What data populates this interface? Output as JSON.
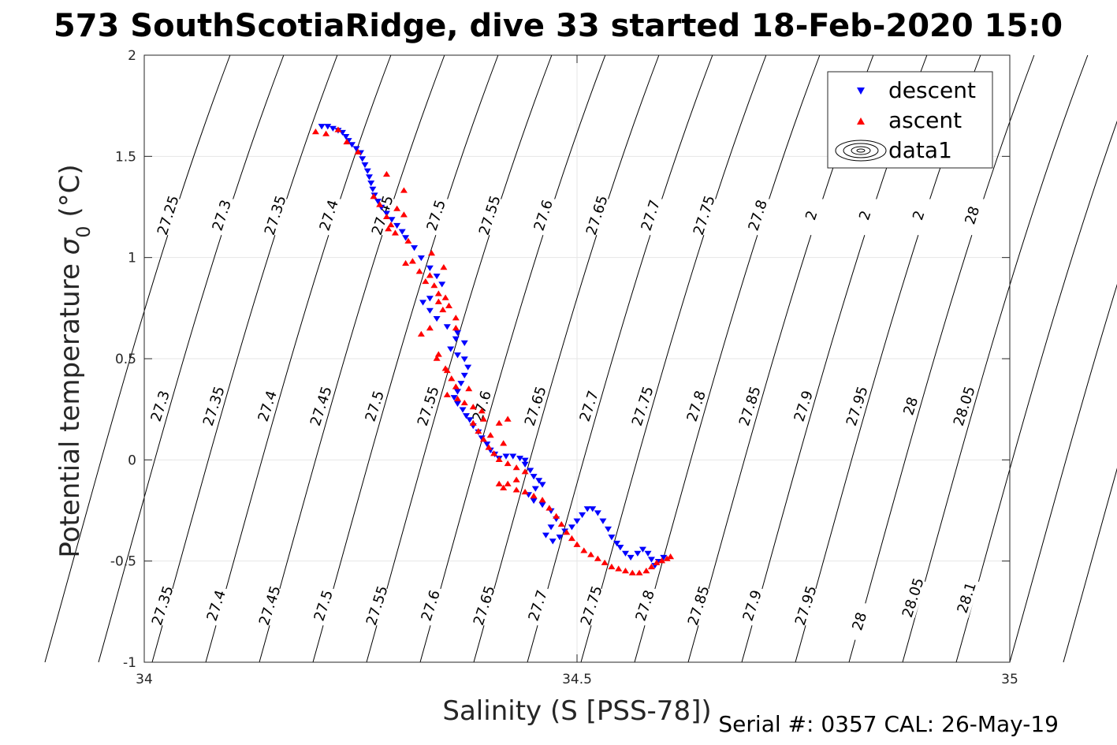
{
  "chart_data": {
    "type": "scatter",
    "title": "573 SouthScotiaRidge, dive 33 started 18-Feb-2020 15:0",
    "xlabel": "Salinity (S [PSS-78])",
    "ylabel_main": "Potential temperature ",
    "ylabel_sigma": "σ",
    "ylabel_sub": "0",
    "ylabel_unit": " (°C)",
    "xlim": [
      34,
      35
    ],
    "ylim": [
      -1,
      2
    ],
    "x_ticks": [
      "34",
      "34.5",
      "35"
    ],
    "y_ticks": [
      "-1",
      "-0.5",
      "0",
      "0.5",
      "1",
      "1.5",
      "2"
    ],
    "grid": true,
    "legend_position": "top-right",
    "legend": [
      {
        "label": "descent",
        "marker": "triangle-down",
        "color": "#0000ff"
      },
      {
        "label": "ascent",
        "marker": "triangle-up",
        "color": "#ff0000"
      },
      {
        "label": "data1",
        "marker": "contour",
        "color": "#000000"
      }
    ],
    "series": [
      {
        "name": "descent",
        "marker": "triangle-down",
        "color": "#0000ff",
        "points": [
          [
            34.205,
            1.65
          ],
          [
            34.212,
            1.65
          ],
          [
            34.218,
            1.64
          ],
          [
            34.224,
            1.63
          ],
          [
            34.229,
            1.62
          ],
          [
            34.233,
            1.6
          ],
          [
            34.236,
            1.58
          ],
          [
            34.24,
            1.56
          ],
          [
            34.245,
            1.54
          ],
          [
            34.25,
            1.52
          ],
          [
            34.252,
            1.49
          ],
          [
            34.255,
            1.46
          ],
          [
            34.258,
            1.43
          ],
          [
            34.26,
            1.4
          ],
          [
            34.262,
            1.37
          ],
          [
            34.264,
            1.34
          ],
          [
            34.266,
            1.31
          ],
          [
            34.27,
            1.28
          ],
          [
            34.274,
            1.25
          ],
          [
            34.28,
            1.22
          ],
          [
            34.286,
            1.19
          ],
          [
            34.292,
            1.16
          ],
          [
            34.298,
            1.13
          ],
          [
            34.302,
            1.1
          ],
          [
            34.312,
            1.05
          ],
          [
            34.32,
            1.0
          ],
          [
            34.33,
            0.95
          ],
          [
            34.338,
            0.91
          ],
          [
            34.344,
            0.87
          ],
          [
            34.33,
            0.8
          ],
          [
            34.322,
            0.78
          ],
          [
            34.33,
            0.74
          ],
          [
            34.338,
            0.7
          ],
          [
            34.35,
            0.66
          ],
          [
            34.362,
            0.63
          ],
          [
            34.36,
            0.6
          ],
          [
            34.37,
            0.58
          ],
          [
            34.354,
            0.55
          ],
          [
            34.362,
            0.52
          ],
          [
            34.37,
            0.5
          ],
          [
            34.374,
            0.46
          ],
          [
            34.37,
            0.42
          ],
          [
            34.366,
            0.38
          ],
          [
            34.362,
            0.34
          ],
          [
            34.358,
            0.31
          ],
          [
            34.362,
            0.28
          ],
          [
            34.368,
            0.25
          ],
          [
            34.372,
            0.22
          ],
          [
            34.376,
            0.2
          ],
          [
            34.38,
            0.17
          ],
          [
            34.386,
            0.14
          ],
          [
            34.39,
            0.11
          ],
          [
            34.396,
            0.08
          ],
          [
            34.4,
            0.05
          ],
          [
            34.405,
            0.03
          ],
          [
            34.41,
            0.01
          ],
          [
            34.418,
            0.02
          ],
          [
            34.426,
            0.02
          ],
          [
            34.434,
            0.01
          ],
          [
            34.44,
            0.0
          ],
          [
            34.44,
            -0.02
          ],
          [
            34.446,
            -0.05
          ],
          [
            34.45,
            -0.08
          ],
          [
            34.456,
            -0.1
          ],
          [
            34.46,
            -0.12
          ],
          [
            34.452,
            -0.14
          ],
          [
            34.444,
            -0.17
          ],
          [
            34.45,
            -0.2
          ],
          [
            34.46,
            -0.22
          ],
          [
            34.47,
            -0.25
          ],
          [
            34.476,
            -0.29
          ],
          [
            34.47,
            -0.33
          ],
          [
            34.464,
            -0.37
          ],
          [
            34.472,
            -0.4
          ],
          [
            34.48,
            -0.38
          ],
          [
            34.486,
            -0.35
          ],
          [
            34.494,
            -0.33
          ],
          [
            34.5,
            -0.3
          ],
          [
            34.506,
            -0.27
          ],
          [
            34.512,
            -0.24
          ],
          [
            34.518,
            -0.24
          ],
          [
            34.524,
            -0.26
          ],
          [
            34.53,
            -0.3
          ],
          [
            34.536,
            -0.34
          ],
          [
            34.54,
            -0.38
          ],
          [
            34.546,
            -0.41
          ],
          [
            34.55,
            -0.43
          ],
          [
            34.556,
            -0.46
          ],
          [
            34.562,
            -0.48
          ],
          [
            34.57,
            -0.46
          ],
          [
            34.576,
            -0.44
          ],
          [
            34.582,
            -0.46
          ],
          [
            34.586,
            -0.49
          ],
          [
            34.59,
            -0.52
          ],
          [
            34.594,
            -0.5
          ],
          [
            34.6,
            -0.48
          ]
        ]
      },
      {
        "name": "ascent",
        "marker": "triangle-up",
        "color": "#ff0000",
        "points": [
          [
            34.198,
            1.62
          ],
          [
            34.21,
            1.61
          ],
          [
            34.224,
            1.63
          ],
          [
            34.234,
            1.57
          ],
          [
            34.247,
            1.52
          ],
          [
            34.265,
            1.3
          ],
          [
            34.272,
            1.26
          ],
          [
            34.28,
            1.2
          ],
          [
            34.285,
            1.16
          ],
          [
            34.29,
            1.12
          ],
          [
            34.282,
            1.14
          ],
          [
            34.292,
            1.24
          ],
          [
            34.3,
            1.21
          ],
          [
            34.28,
            1.41
          ],
          [
            34.3,
            1.33
          ],
          [
            34.305,
            1.08
          ],
          [
            34.31,
            0.98
          ],
          [
            34.302,
            0.97
          ],
          [
            34.318,
            0.93
          ],
          [
            34.33,
            0.91
          ],
          [
            34.325,
            0.88
          ],
          [
            34.335,
            0.86
          ],
          [
            34.332,
            1.02
          ],
          [
            34.34,
            0.82
          ],
          [
            34.34,
            0.78
          ],
          [
            34.345,
            0.74
          ],
          [
            34.348,
            0.8
          ],
          [
            34.352,
            0.76
          ],
          [
            34.36,
            0.7
          ],
          [
            34.33,
            0.65
          ],
          [
            34.34,
            0.52
          ],
          [
            34.348,
            0.45
          ],
          [
            34.355,
            0.4
          ],
          [
            34.36,
            0.36
          ],
          [
            34.35,
            0.32
          ],
          [
            34.362,
            0.3
          ],
          [
            34.37,
            0.28
          ],
          [
            34.38,
            0.26
          ],
          [
            34.39,
            0.24
          ],
          [
            34.375,
            0.35
          ],
          [
            34.38,
            0.18
          ],
          [
            34.386,
            0.14
          ],
          [
            34.392,
            0.1
          ],
          [
            34.398,
            0.06
          ],
          [
            34.404,
            0.03
          ],
          [
            34.41,
            0.0
          ],
          [
            34.42,
            -0.02
          ],
          [
            34.43,
            -0.04
          ],
          [
            34.44,
            -0.06
          ],
          [
            34.43,
            -0.1
          ],
          [
            34.42,
            -0.12
          ],
          [
            34.41,
            -0.12
          ],
          [
            34.415,
            -0.14
          ],
          [
            34.43,
            -0.15
          ],
          [
            34.44,
            -0.16
          ],
          [
            34.45,
            -0.18
          ],
          [
            34.46,
            -0.2
          ],
          [
            34.468,
            -0.24
          ],
          [
            34.476,
            -0.28
          ],
          [
            34.482,
            -0.32
          ],
          [
            34.488,
            -0.36
          ],
          [
            34.494,
            -0.39
          ],
          [
            34.5,
            -0.42
          ],
          [
            34.508,
            -0.45
          ],
          [
            34.516,
            -0.47
          ],
          [
            34.524,
            -0.49
          ],
          [
            34.532,
            -0.51
          ],
          [
            34.54,
            -0.53
          ],
          [
            34.548,
            -0.54
          ],
          [
            34.556,
            -0.55
          ],
          [
            34.564,
            -0.56
          ],
          [
            34.572,
            -0.56
          ],
          [
            34.58,
            -0.55
          ],
          [
            34.586,
            -0.53
          ],
          [
            34.592,
            -0.51
          ],
          [
            34.598,
            -0.5
          ],
          [
            34.604,
            -0.49
          ],
          [
            34.608,
            -0.48
          ],
          [
            34.42,
            0.2
          ],
          [
            34.41,
            0.18
          ],
          [
            34.4,
            0.12
          ],
          [
            34.392,
            0.2
          ],
          [
            34.415,
            0.08
          ],
          [
            34.36,
            0.65
          ],
          [
            34.346,
            0.95
          ],
          [
            34.32,
            0.62
          ],
          [
            34.338,
            0.5
          ],
          [
            34.35,
            0.44
          ]
        ]
      }
    ],
    "contours": {
      "lower_row": [
        "27.35",
        "27.4",
        "27.45",
        "27.5",
        "27.55",
        "27.6",
        "27.65",
        "27.7",
        "27.75",
        "27.8",
        "27.85",
        "27.9",
        "27.95",
        "28",
        "28.05",
        "28.1"
      ],
      "middle_row": [
        "27.3",
        "27.35",
        "27.4",
        "27.45",
        "27.5",
        "27.55",
        "27.6",
        "27.65",
        "27.7",
        "27.75",
        "27.8",
        "27.85",
        "27.9",
        "27.95",
        "28",
        "28.05"
      ],
      "upper_row": [
        "27.25",
        "27.3",
        "27.35",
        "27.4",
        "27.45",
        "27.5",
        "27.55",
        "27.6",
        "27.65",
        "27.7",
        "27.75",
        "27.8",
        "2",
        "2",
        "2",
        "28"
      ]
    }
  },
  "footer": {
    "serial_text": "Serial #: 0357  CAL: 26-May-19"
  }
}
